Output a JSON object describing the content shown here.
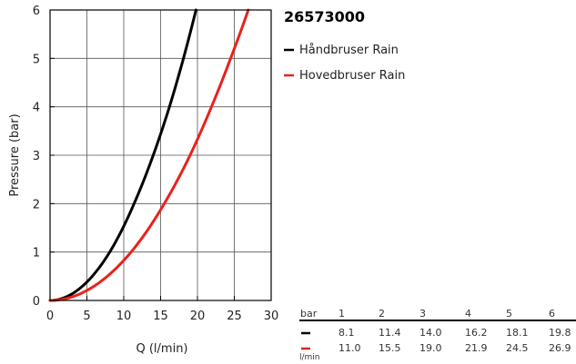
{
  "chart_data": {
    "type": "line",
    "title": "26573000",
    "xlabel": "Q (l/min)",
    "ylabel": "Pressure (bar)",
    "xlim": [
      0,
      30
    ],
    "ylim": [
      0,
      6
    ],
    "xticks": [
      0,
      5,
      10,
      15,
      20,
      25,
      30
    ],
    "yticks": [
      0,
      1,
      2,
      3,
      4,
      5,
      6
    ],
    "grid": true,
    "legend_position": "right",
    "series": [
      {
        "name": "Håndbruser Rain",
        "color": "#000000",
        "points": [
          {
            "x": 0,
            "y": 0
          },
          {
            "x": 8.1,
            "y": 1
          },
          {
            "x": 11.4,
            "y": 2
          },
          {
            "x": 14.0,
            "y": 3
          },
          {
            "x": 16.2,
            "y": 4
          },
          {
            "x": 18.1,
            "y": 5
          },
          {
            "x": 19.8,
            "y": 6
          }
        ]
      },
      {
        "name": "Hovedbruser Rain",
        "color": "#e8221b",
        "points": [
          {
            "x": 0,
            "y": 0
          },
          {
            "x": 11.0,
            "y": 1
          },
          {
            "x": 15.5,
            "y": 2
          },
          {
            "x": 19.0,
            "y": 3
          },
          {
            "x": 21.9,
            "y": 4
          },
          {
            "x": 24.5,
            "y": 5
          },
          {
            "x": 26.9,
            "y": 6
          }
        ]
      }
    ],
    "table": {
      "header_label": "bar",
      "unit_label": "l/min",
      "pressures": [
        "1",
        "2",
        "3",
        "4",
        "5",
        "6"
      ],
      "rows": [
        {
          "color": "#000000",
          "values": [
            "8.1",
            "11.4",
            "14.0",
            "16.2",
            "18.1",
            "19.8"
          ]
        },
        {
          "color": "#e8221b",
          "values": [
            "11.0",
            "15.5",
            "19.0",
            "21.9",
            "24.5",
            "26.9"
          ]
        }
      ]
    }
  }
}
